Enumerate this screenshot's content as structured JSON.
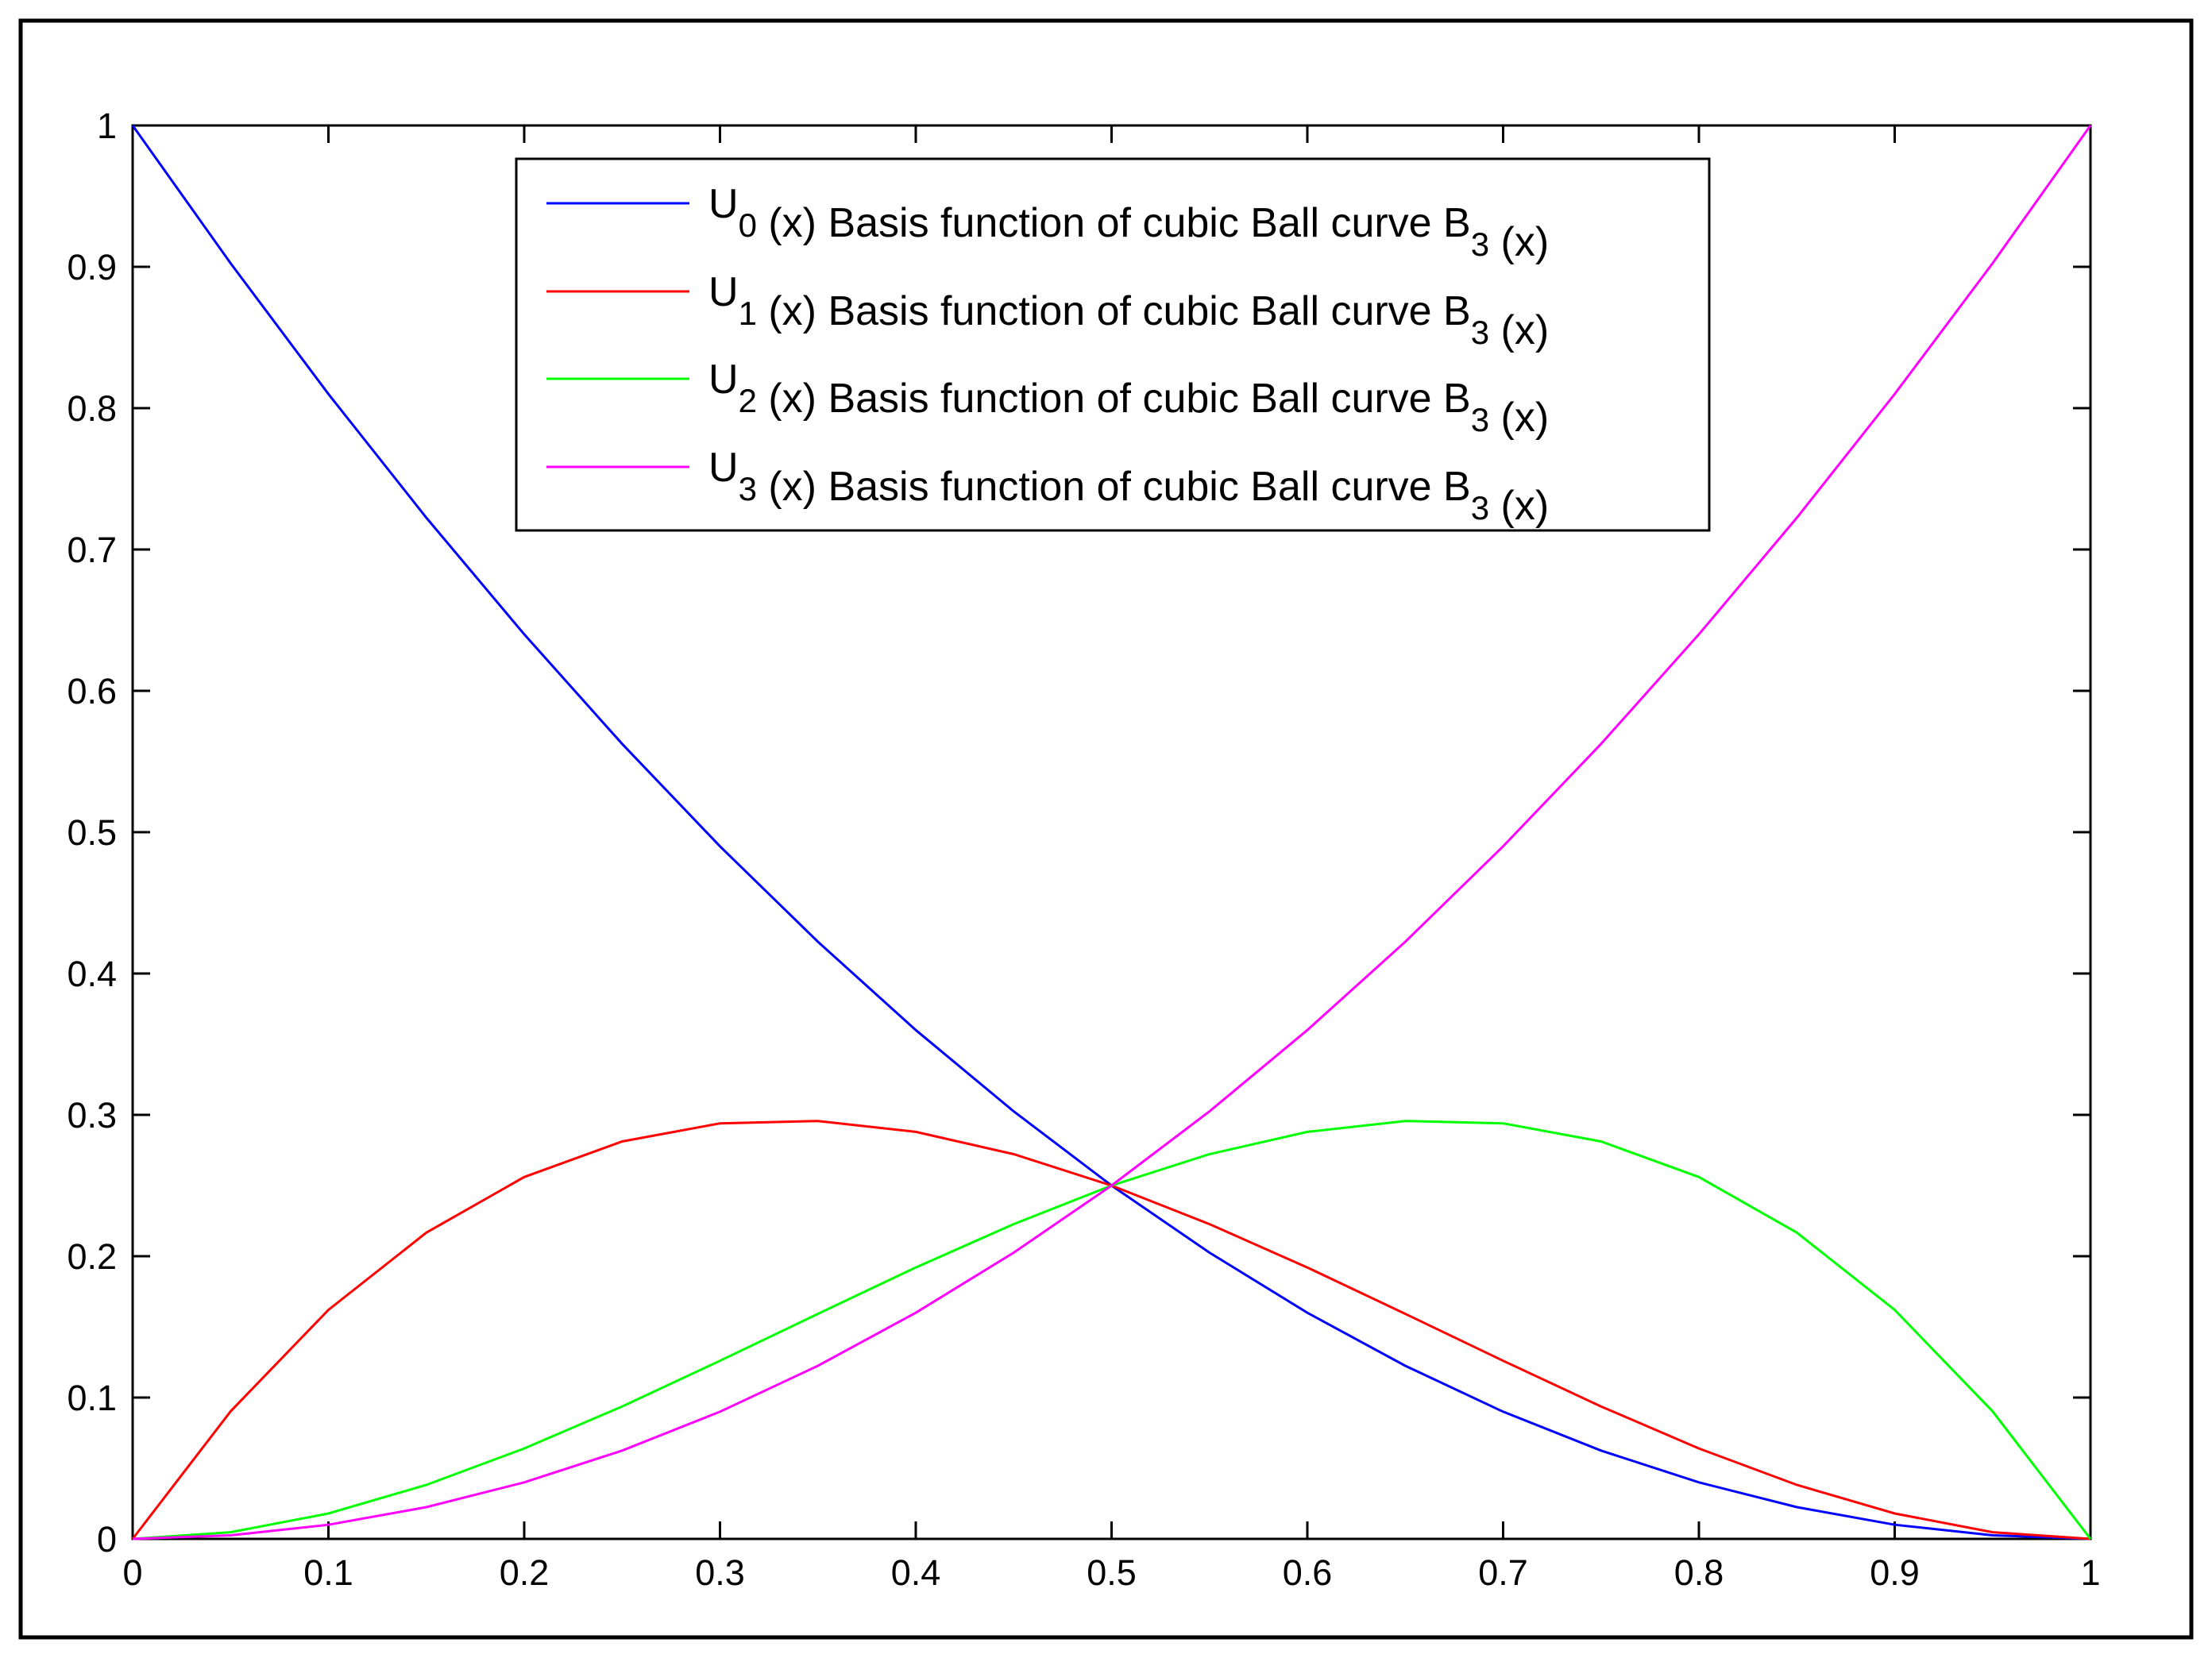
{
  "chart_data": {
    "type": "line",
    "title": "",
    "xlabel": "",
    "ylabel": "",
    "xlim": [
      0,
      1
    ],
    "ylim": [
      0,
      1
    ],
    "grid": false,
    "legend_position": "top-center",
    "x_ticks": [
      "0",
      "0.1",
      "0.2",
      "0.3",
      "0.4",
      "0.5",
      "0.6",
      "0.7",
      "0.8",
      "0.9",
      "1"
    ],
    "y_ticks": [
      "0",
      "0.1",
      "0.2",
      "0.3",
      "0.4",
      "0.5",
      "0.6",
      "0.7",
      "0.8",
      "0.9",
      "1"
    ],
    "x": [
      0,
      0.05,
      0.1,
      0.15,
      0.2,
      0.25,
      0.3,
      0.35,
      0.4,
      0.45,
      0.5,
      0.55,
      0.6,
      0.65,
      0.7,
      0.75,
      0.8,
      0.85,
      0.9,
      0.95,
      1
    ],
    "series": [
      {
        "label_main": "U",
        "label_sub": "0",
        "label_text": " (x) Basis function of cubic Ball curve B",
        "label_sub2": "3",
        "label_end": " (x)",
        "color": "#0000ff",
        "values": [
          1,
          0.9025,
          0.81,
          0.7225,
          0.64,
          0.5625,
          0.49,
          0.4225,
          0.36,
          0.3025,
          0.25,
          0.2025,
          0.16,
          0.1225,
          0.09,
          0.0625,
          0.04,
          0.0225,
          0.01,
          0.0025,
          0
        ]
      },
      {
        "label_main": "U",
        "label_sub": "1",
        "label_text": " (x) Basis function of cubic Ball curve B",
        "label_sub2": "3",
        "label_end": " (x)",
        "color": "#ff0000",
        "values": [
          0,
          0.0902,
          0.162,
          0.2167,
          0.256,
          0.2812,
          0.294,
          0.2957,
          0.288,
          0.2722,
          0.25,
          0.2227,
          0.192,
          0.1592,
          0.126,
          0.0937,
          0.064,
          0.0382,
          0.018,
          0.0047,
          0
        ]
      },
      {
        "label_main": "U",
        "label_sub": "2",
        "label_text": " (x) Basis function of cubic Ball curve B",
        "label_sub2": "3",
        "label_end": " (x)",
        "color": "#00ff00",
        "values": [
          0,
          0.0047,
          0.018,
          0.0382,
          0.064,
          0.0937,
          0.126,
          0.1592,
          0.192,
          0.2227,
          0.25,
          0.2722,
          0.288,
          0.2957,
          0.294,
          0.2812,
          0.256,
          0.2167,
          0.162,
          0.0902,
          0
        ]
      },
      {
        "label_main": "U",
        "label_sub": "3",
        "label_text": " (x) Basis function of cubic Ball curve B",
        "label_sub2": "3",
        "label_end": " (x)",
        "color": "#ff00ff",
        "values": [
          0,
          0.0025,
          0.01,
          0.0225,
          0.04,
          0.0625,
          0.09,
          0.1225,
          0.16,
          0.2025,
          0.25,
          0.3025,
          0.36,
          0.4225,
          0.49,
          0.5625,
          0.64,
          0.7225,
          0.81,
          0.9025,
          1
        ]
      }
    ]
  }
}
